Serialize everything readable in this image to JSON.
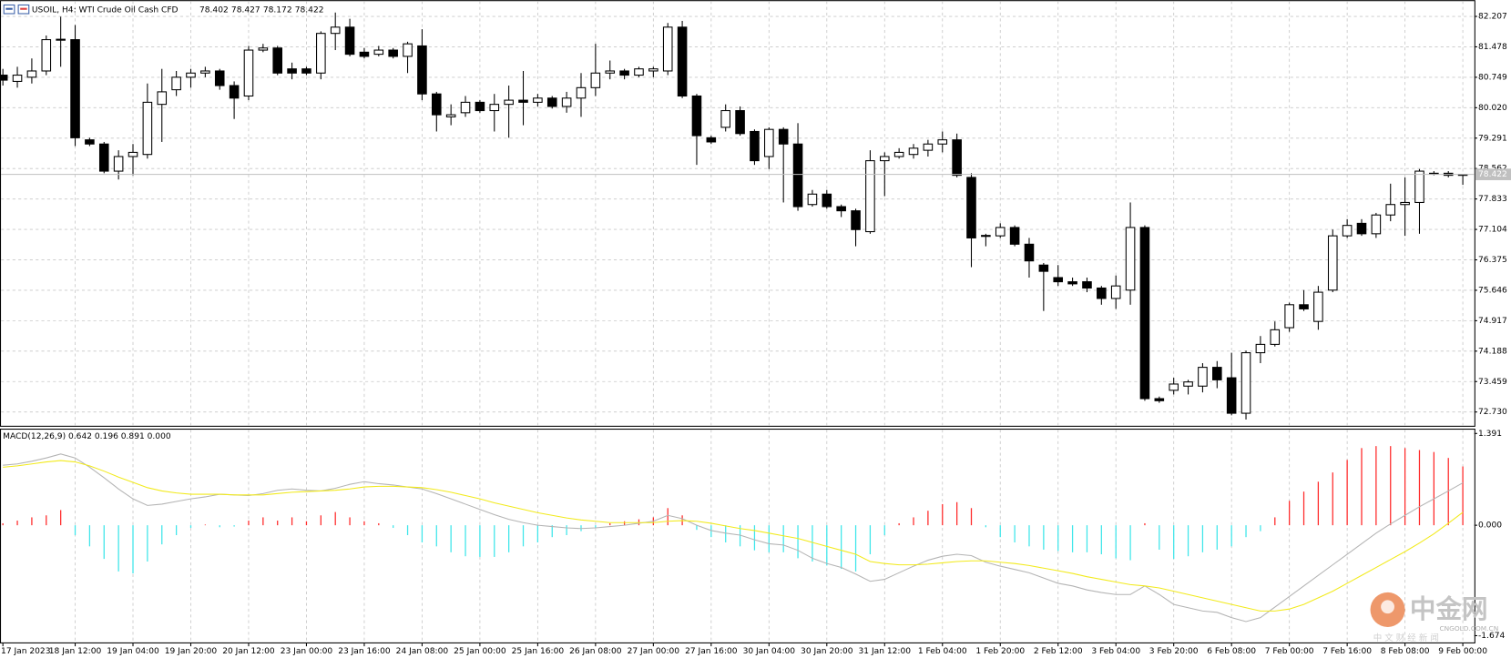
{
  "chart_data": [
    {
      "type": "candlestick",
      "title": "USOIL, H4:  WTI Crude Oil Cash CFD",
      "up_color": "#ffffff",
      "down_color": "#000000",
      "edge_color": "#000000",
      "price_line_color": "#c0c0c0",
      "grid": true,
      "categories": [
        "17 Jan 2023",
        null,
        null,
        null,
        null,
        "18 Jan 12:00",
        null,
        null,
        null,
        "19 Jan 04:00",
        null,
        null,
        null,
        "19 Jan 20:00",
        null,
        null,
        null,
        "20 Jan 12:00",
        null,
        null,
        null,
        "23 Jan 00:00",
        null,
        null,
        null,
        "23 Jan 16:00",
        null,
        null,
        null,
        "24 Jan 08:00",
        null,
        null,
        null,
        "25 Jan 00:00",
        null,
        null,
        null,
        "25 Jan 16:00",
        null,
        null,
        null,
        "26 Jan 08:00",
        null,
        null,
        null,
        "27 Jan 00:00",
        null,
        null,
        null,
        "27 Jan 16:00",
        null,
        null,
        null,
        "30 Jan 04:00",
        null,
        null,
        null,
        "30 Jan 20:00",
        null,
        null,
        null,
        "31 Jan 12:00",
        null,
        null,
        null,
        "1 Feb 04:00",
        null,
        null,
        null,
        "1 Feb 20:00",
        null,
        null,
        null,
        "2 Feb 12:00",
        null,
        null,
        null,
        "3 Feb 04:00",
        null,
        null,
        null,
        "3 Feb 20:00",
        null,
        null,
        null,
        "6 Feb 08:00",
        null,
        null,
        null,
        "7 Feb 00:00",
        null,
        null,
        null,
        "7 Feb 16:00",
        null,
        null,
        null,
        "8 Feb 08:00",
        null,
        null,
        null,
        "9 Feb 00:00"
      ],
      "open": [
        80.8,
        80.65,
        80.75,
        80.9,
        81.65,
        81.65,
        79.25,
        79.15,
        78.5,
        78.85,
        78.9,
        80.1,
        80.45,
        80.75,
        80.85,
        80.9,
        80.55,
        80.3,
        81.4,
        81.45,
        80.95,
        80.95,
        80.85,
        81.8,
        81.95,
        81.35,
        81.3,
        81.4,
        81.25,
        81.5,
        80.35,
        79.8,
        79.9,
        80.15,
        79.95,
        80.1,
        80.2,
        80.15,
        80.25,
        80.05,
        80.25,
        80.5,
        80.85,
        80.9,
        80.8,
        80.9,
        80.9,
        81.95,
        80.3,
        79.3,
        79.55,
        79.95,
        79.45,
        78.85,
        79.5,
        79.15,
        77.7,
        77.95,
        77.65,
        77.55,
        77.05,
        78.75,
        78.85,
        78.9,
        79.0,
        79.15,
        79.25,
        78.35,
        76.95,
        76.95,
        77.15,
        76.75,
        76.25,
        75.95,
        75.85,
        75.85,
        75.7,
        75.45,
        75.65,
        77.15,
        73.05,
        73.25,
        73.35,
        73.35,
        73.8,
        73.55,
        72.7,
        74.15,
        74.35,
        74.75,
        75.3,
        74.9,
        75.65,
        76.95,
        77.25,
        77.0,
        77.45,
        77.7,
        77.75,
        78.45,
        78.45,
        78.402
      ],
      "high": [
        80.95,
        81.0,
        81.2,
        81.75,
        82.2,
        82.0,
        79.3,
        79.2,
        79.0,
        79.15,
        80.6,
        80.95,
        80.9,
        80.95,
        81.0,
        80.95,
        80.65,
        81.5,
        81.55,
        81.5,
        81.1,
        81.0,
        81.85,
        82.3,
        82.15,
        81.45,
        81.5,
        81.45,
        81.6,
        81.9,
        80.4,
        80.1,
        80.3,
        80.2,
        80.35,
        80.55,
        80.9,
        80.35,
        80.3,
        80.4,
        80.85,
        81.55,
        81.15,
        80.95,
        81.0,
        81.0,
        82.05,
        82.1,
        80.35,
        79.35,
        80.1,
        80.05,
        79.5,
        79.55,
        79.55,
        79.65,
        78.05,
        78.05,
        77.7,
        77.6,
        79.0,
        78.95,
        79.05,
        79.15,
        79.25,
        79.45,
        79.4,
        78.45,
        77.0,
        77.25,
        77.2,
        76.9,
        76.3,
        76.25,
        75.95,
        75.95,
        75.75,
        76.0,
        77.75,
        77.2,
        73.1,
        73.55,
        73.5,
        73.9,
        73.95,
        74.15,
        74.2,
        74.55,
        74.9,
        75.35,
        75.65,
        75.75,
        77.1,
        77.35,
        77.35,
        77.5,
        78.2,
        78.35,
        78.55,
        78.5,
        78.5,
        78.427
      ],
      "low": [
        80.55,
        80.5,
        80.6,
        80.8,
        81.0,
        79.1,
        79.1,
        78.45,
        78.3,
        78.4,
        78.8,
        79.2,
        80.3,
        80.5,
        80.75,
        80.45,
        79.75,
        80.2,
        81.35,
        80.8,
        80.7,
        80.8,
        80.7,
        81.4,
        81.25,
        81.2,
        81.25,
        81.2,
        80.85,
        80.2,
        79.45,
        79.6,
        79.8,
        79.9,
        79.45,
        79.3,
        79.6,
        80.05,
        80.0,
        79.9,
        79.8,
        80.3,
        80.7,
        80.7,
        80.75,
        80.75,
        80.8,
        80.25,
        78.65,
        79.15,
        79.45,
        79.35,
        78.65,
        78.55,
        77.75,
        77.55,
        77.65,
        77.6,
        77.4,
        76.7,
        77.0,
        77.9,
        78.8,
        78.8,
        78.85,
        78.95,
        78.35,
        76.2,
        76.7,
        76.9,
        76.7,
        75.95,
        75.15,
        75.75,
        75.75,
        75.6,
        75.3,
        75.2,
        75.3,
        73.0,
        72.95,
        73.15,
        73.15,
        73.2,
        73.3,
        72.65,
        72.55,
        73.9,
        74.3,
        74.65,
        75.15,
        74.7,
        75.6,
        76.9,
        76.95,
        76.9,
        77.3,
        76.95,
        77.0,
        78.4,
        78.35,
        78.172
      ],
      "close": [
        80.68,
        80.8,
        80.9,
        81.65,
        81.66,
        79.3,
        79.15,
        78.5,
        78.85,
        78.95,
        80.15,
        80.4,
        80.75,
        80.85,
        80.9,
        80.55,
        80.25,
        81.4,
        81.45,
        80.85,
        80.85,
        80.85,
        81.8,
        81.95,
        81.3,
        81.25,
        81.4,
        81.25,
        81.55,
        80.35,
        79.85,
        79.85,
        80.15,
        79.95,
        80.1,
        80.2,
        80.15,
        80.25,
        80.05,
        80.25,
        80.5,
        80.85,
        80.9,
        80.8,
        80.95,
        80.95,
        81.95,
        80.3,
        79.35,
        79.2,
        79.95,
        79.4,
        78.75,
        79.5,
        79.15,
        77.65,
        77.95,
        77.65,
        77.55,
        77.1,
        78.75,
        78.85,
        78.95,
        79.05,
        79.15,
        79.25,
        78.4,
        76.9,
        76.96,
        77.15,
        76.75,
        76.35,
        76.1,
        75.85,
        75.8,
        75.7,
        75.45,
        75.75,
        77.15,
        73.05,
        73.0,
        73.4,
        73.45,
        73.8,
        73.5,
        72.7,
        74.15,
        74.35,
        74.7,
        75.3,
        75.2,
        75.6,
        76.95,
        77.2,
        77.0,
        77.45,
        77.7,
        77.75,
        78.5,
        78.45,
        78.4,
        78.422
      ],
      "ylim": [
        72.4,
        82.55
      ],
      "yticks": [
        82.207,
        81.478,
        80.749,
        {
          "value": 80.02,
          "label": "80.020"
        },
        79.291,
        78.562,
        77.833,
        77.104,
        76.375,
        75.646,
        74.917,
        74.188,
        73.459,
        {
          "value": 72.73,
          "label": "72.730"
        }
      ]
    },
    {
      "type": "macd",
      "title": "MACD(12,26,9) 0.642 0.196 0.891 0.000",
      "ylim": [
        -1.674,
        1.391
      ],
      "yticks": [
        1.391,
        {
          "value": 0,
          "label": "0.000"
        },
        -1.674
      ],
      "series": [
        {
          "kind": "histogram",
          "color": "#ff2a2a",
          "negative_color": "#3fe6ea",
          "values": [
            0.03,
            0.07,
            0.12,
            0.15,
            0.23,
            -0.15,
            -0.32,
            -0.51,
            -0.7,
            -0.73,
            -0.55,
            -0.29,
            -0.15,
            -0.04,
            0.01,
            -0.03,
            -0.02,
            0.07,
            0.12,
            0.07,
            0.12,
            0.06,
            0.15,
            0.2,
            0.12,
            0.06,
            0.03,
            -0.04,
            -0.15,
            -0.26,
            -0.32,
            -0.41,
            -0.47,
            -0.48,
            -0.48,
            -0.41,
            -0.32,
            -0.26,
            -0.18,
            -0.15,
            -0.09,
            -0.04,
            0.03,
            0.06,
            0.09,
            0.12,
            0.26,
            0.15,
            -0.07,
            -0.18,
            -0.26,
            -0.32,
            -0.38,
            -0.41,
            -0.41,
            -0.5,
            -0.55,
            -0.61,
            -0.66,
            -0.7,
            -0.44,
            -0.15,
            0.03,
            0.12,
            0.22,
            0.32,
            0.35,
            0.26,
            -0.03,
            -0.18,
            -0.26,
            -0.32,
            -0.37,
            -0.39,
            -0.41,
            -0.41,
            -0.44,
            -0.5,
            -0.53,
            0.03,
            -0.37,
            -0.51,
            -0.47,
            -0.41,
            -0.37,
            -0.32,
            -0.18,
            -0.09,
            0.12,
            0.37,
            0.51,
            0.66,
            0.8,
            0.99,
            1.17,
            1.2,
            1.2,
            1.17,
            1.14,
            1.11,
            1.02,
            0.891
          ]
        },
        {
          "kind": "line",
          "color": "#b4b4b4",
          "values": [
            0.91,
            0.93,
            0.97,
            1.02,
            1.08,
            1.02,
            0.88,
            0.72,
            0.55,
            0.4,
            0.3,
            0.32,
            0.36,
            0.4,
            0.43,
            0.47,
            0.46,
            0.45,
            0.48,
            0.53,
            0.55,
            0.53,
            0.52,
            0.56,
            0.62,
            0.66,
            0.63,
            0.61,
            0.58,
            0.55,
            0.48,
            0.4,
            0.32,
            0.24,
            0.16,
            0.09,
            0.04,
            0.0,
            -0.02,
            -0.04,
            -0.05,
            -0.04,
            -0.02,
            0.0,
            0.03,
            0.06,
            0.15,
            0.1,
            0.0,
            -0.08,
            -0.12,
            -0.15,
            -0.22,
            -0.28,
            -0.3,
            -0.38,
            -0.5,
            -0.58,
            -0.64,
            -0.74,
            -0.85,
            -0.82,
            -0.72,
            -0.62,
            -0.53,
            -0.47,
            -0.44,
            -0.46,
            -0.56,
            -0.62,
            -0.67,
            -0.72,
            -0.8,
            -0.88,
            -0.92,
            -0.98,
            -1.02,
            -1.05,
            -1.05,
            -0.92,
            -1.05,
            -1.2,
            -1.25,
            -1.3,
            -1.32,
            -1.4,
            -1.46,
            -1.4,
            -1.24,
            -1.08,
            -0.92,
            -0.76,
            -0.6,
            -0.44,
            -0.28,
            -0.12,
            0.02,
            0.15,
            0.28,
            0.4,
            0.52,
            0.642
          ]
        },
        {
          "kind": "line",
          "color": "#f2ea1c",
          "values": [
            0.88,
            0.9,
            0.93,
            0.96,
            0.98,
            0.96,
            0.9,
            0.82,
            0.73,
            0.65,
            0.57,
            0.52,
            0.49,
            0.47,
            0.47,
            0.47,
            0.46,
            0.46,
            0.46,
            0.48,
            0.5,
            0.51,
            0.52,
            0.53,
            0.55,
            0.58,
            0.59,
            0.59,
            0.58,
            0.57,
            0.54,
            0.5,
            0.45,
            0.4,
            0.34,
            0.29,
            0.24,
            0.19,
            0.15,
            0.11,
            0.08,
            0.06,
            0.04,
            0.04,
            0.04,
            0.04,
            0.06,
            0.07,
            0.06,
            0.03,
            -0.01,
            -0.05,
            -0.08,
            -0.12,
            -0.16,
            -0.2,
            -0.26,
            -0.32,
            -0.38,
            -0.44,
            -0.55,
            -0.58,
            -0.6,
            -0.6,
            -0.59,
            -0.57,
            -0.55,
            -0.54,
            -0.54,
            -0.56,
            -0.58,
            -0.61,
            -0.65,
            -0.69,
            -0.73,
            -0.78,
            -0.82,
            -0.86,
            -0.9,
            -0.92,
            -0.95,
            -1.0,
            -1.05,
            -1.1,
            -1.15,
            -1.2,
            -1.25,
            -1.3,
            -1.3,
            -1.27,
            -1.2,
            -1.1,
            -1.0,
            -0.88,
            -0.76,
            -0.64,
            -0.52,
            -0.4,
            -0.27,
            -0.13,
            0.03,
            0.196
          ]
        }
      ]
    }
  ],
  "watermark": {
    "title": "中金网",
    "url": "CNGOLD.COM.CN",
    "tagline": "中 文 财 经 新 闻"
  }
}
